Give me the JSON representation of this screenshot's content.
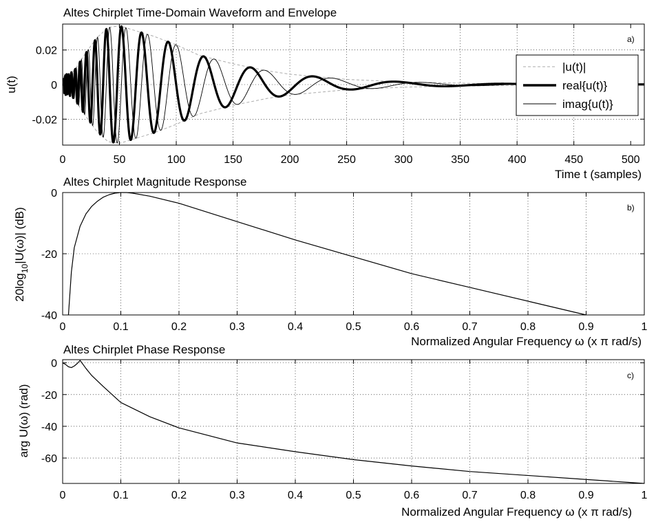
{
  "chart_data": [
    {
      "type": "line",
      "panel_label": "a)",
      "title": "Altes Chirplet Time-Domain Waveform and Envelope",
      "xlabel": "Time t (samples)",
      "ylabel": "u(t)",
      "xlim": [
        0,
        512
      ],
      "ylim": [
        -0.035,
        0.035
      ],
      "xticks": [
        0,
        50,
        100,
        150,
        200,
        250,
        300,
        350,
        400,
        450,
        500
      ],
      "yticks": [
        -0.02,
        0,
        0.02
      ],
      "ytick_labels": [
        "-0.02",
        "0",
        "0.02"
      ],
      "grid": true,
      "legend_position": "right",
      "envelope_peak_t": 43,
      "envelope_peak_value": 0.034,
      "series": [
        {
          "name": "|u(t)|",
          "style": "dashed-gray",
          "t": [
            5,
            10,
            20,
            30,
            40,
            50,
            60,
            80,
            100,
            120,
            150,
            180,
            200,
            250,
            300,
            350,
            400,
            450,
            512
          ],
          "values": [
            0.006,
            0.008,
            0.018,
            0.027,
            0.033,
            0.034,
            0.032,
            0.028,
            0.023,
            0.017,
            0.012,
            0.008,
            0.006,
            0.003,
            0.0015,
            0.0008,
            0.0004,
            0.0002,
            0.0001
          ]
        },
        {
          "name": "real{u(t)}",
          "style": "thick-black"
        },
        {
          "name": "imag{u(t)}",
          "style": "thin-black"
        }
      ]
    },
    {
      "type": "line",
      "panel_label": "b)",
      "title": "Altes Chirplet Magnitude Response",
      "xlabel": "Normalized Angular Frequency  ω (x π rad/s)",
      "ylabel_main": "20log",
      "ylabel_sub": "10",
      "ylabel_rest": "|U(ω)| (dB)",
      "xlim": [
        0,
        1
      ],
      "ylim": [
        -40,
        0
      ],
      "xticks": [
        0,
        0.1,
        0.2,
        0.3,
        0.4,
        0.5,
        0.6,
        0.7,
        0.8,
        0.9,
        1
      ],
      "xtick_labels": [
        "0",
        "0.1",
        "0.2",
        "0.3",
        "0.4",
        "0.5",
        "0.6",
        "0.7",
        "0.8",
        "0.9",
        "1"
      ],
      "yticks": [
        -40,
        -20,
        0
      ],
      "ytick_labels": [
        "-40",
        "-20",
        "0"
      ],
      "grid": true,
      "x": [
        0.01,
        0.015,
        0.02,
        0.03,
        0.04,
        0.05,
        0.06,
        0.07,
        0.08,
        0.09,
        0.1,
        0.11,
        0.12,
        0.15,
        0.2,
        0.3,
        0.4,
        0.5,
        0.6,
        0.7,
        0.8,
        0.9
      ],
      "y": [
        -40,
        -26,
        -18,
        -11,
        -7,
        -4.5,
        -2.8,
        -1.5,
        -0.7,
        -0.2,
        0,
        0,
        -0.2,
        -1.2,
        -3.5,
        -9.5,
        -15.5,
        -21,
        -26.5,
        -31,
        -35.5,
        -40
      ]
    },
    {
      "type": "line",
      "panel_label": "c)",
      "title": "Altes Chirplet Phase Response",
      "xlabel": "Normalized Angular Frequency  ω (x π rad/s)",
      "ylabel": "arg U(ω) (rad)",
      "xlim": [
        0,
        1
      ],
      "ylim": [
        -76,
        2
      ],
      "xticks": [
        0,
        0.1,
        0.2,
        0.3,
        0.4,
        0.5,
        0.6,
        0.7,
        0.8,
        0.9,
        1
      ],
      "xtick_labels": [
        "0",
        "0.1",
        "0.2",
        "0.3",
        "0.4",
        "0.5",
        "0.6",
        "0.7",
        "0.8",
        "0.9",
        "1"
      ],
      "yticks": [
        -60,
        -40,
        -20,
        0
      ],
      "ytick_labels": [
        "-60",
        "-40",
        "-20",
        "0"
      ],
      "grid": true,
      "x": [
        0,
        0.005,
        0.01,
        0.015,
        0.02,
        0.025,
        0.03,
        0.04,
        0.05,
        0.07,
        0.1,
        0.15,
        0.2,
        0.3,
        0.4,
        0.5,
        0.6,
        0.7,
        0.8,
        0.9,
        1
      ],
      "y": [
        0,
        -1,
        -2.5,
        -3,
        -2,
        -0.5,
        1.5,
        -3.5,
        -8,
        -15,
        -25,
        -34,
        -41,
        -50.5,
        -56,
        -61,
        -65,
        -68.5,
        -71,
        -73.5,
        -76
      ]
    }
  ]
}
